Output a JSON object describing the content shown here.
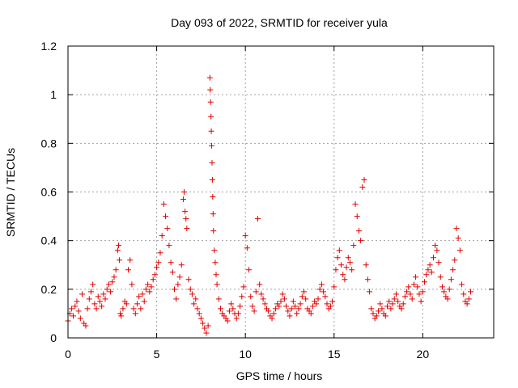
{
  "chart_data": {
    "type": "scatter",
    "title": "Day 093 of 2022, SRMTID for receiver yula",
    "xlabel": "GPS time / hours",
    "ylabel": "SRMTID / TECUs",
    "xlim": [
      0,
      24
    ],
    "ylim": [
      0,
      1.2
    ],
    "xticks": [
      0,
      5,
      10,
      15,
      20
    ],
    "yticks": [
      0,
      0.2,
      0.4,
      0.6,
      0.8,
      1,
      1.2
    ],
    "ytick_labels": [
      "0",
      "0.2",
      "0.4",
      "0.6",
      "0.8",
      "1",
      "1.2"
    ],
    "grid": true,
    "marker": "+",
    "color": "#e00000",
    "series": [
      {
        "name": "SRMTID",
        "x": [
          0.0,
          0.1,
          0.2,
          0.3,
          0.4,
          0.5,
          0.6,
          0.7,
          0.8,
          0.9,
          1.0,
          1.1,
          1.2,
          1.3,
          1.4,
          1.5,
          1.6,
          1.7,
          1.8,
          1.9,
          2.0,
          2.1,
          2.2,
          2.3,
          2.4,
          2.5,
          2.6,
          2.7,
          2.8,
          2.85,
          2.9,
          2.95,
          3.0,
          3.1,
          3.2,
          3.3,
          3.4,
          3.5,
          3.6,
          3.7,
          3.8,
          3.9,
          4.0,
          4.1,
          4.2,
          4.3,
          4.4,
          4.5,
          4.6,
          4.7,
          4.8,
          4.9,
          5.0,
          5.1,
          5.2,
          5.3,
          5.4,
          5.5,
          5.6,
          5.7,
          5.8,
          5.9,
          6.0,
          6.1,
          6.2,
          6.3,
          6.4,
          6.5,
          6.55,
          6.6,
          6.65,
          6.7,
          6.8,
          6.9,
          7.0,
          7.1,
          7.2,
          7.3,
          7.4,
          7.5,
          7.6,
          7.7,
          7.8,
          7.9,
          8.0,
          8.02,
          8.04,
          8.06,
          8.08,
          8.1,
          8.12,
          8.14,
          8.16,
          8.18,
          8.2,
          8.25,
          8.3,
          8.35,
          8.4,
          8.5,
          8.6,
          8.7,
          8.8,
          8.9,
          9.0,
          9.1,
          9.2,
          9.3,
          9.4,
          9.5,
          9.6,
          9.7,
          9.8,
          9.9,
          10.0,
          10.1,
          10.2,
          10.3,
          10.4,
          10.5,
          10.6,
          10.7,
          10.8,
          10.9,
          11.0,
          11.1,
          11.2,
          11.3,
          11.4,
          11.5,
          11.6,
          11.7,
          11.8,
          11.9,
          12.0,
          12.1,
          12.2,
          12.3,
          12.4,
          12.5,
          12.6,
          12.7,
          12.8,
          12.9,
          13.0,
          13.1,
          13.2,
          13.3,
          13.4,
          13.5,
          13.6,
          13.7,
          13.8,
          13.9,
          14.0,
          14.1,
          14.2,
          14.3,
          14.4,
          14.5,
          14.6,
          14.7,
          14.8,
          14.9,
          15.0,
          15.1,
          15.2,
          15.3,
          15.4,
          15.5,
          15.6,
          15.7,
          15.8,
          15.9,
          16.0,
          16.1,
          16.2,
          16.3,
          16.4,
          16.5,
          16.6,
          16.7,
          16.8,
          16.9,
          17.0,
          17.1,
          17.2,
          17.3,
          17.4,
          17.5,
          17.6,
          17.7,
          17.8,
          17.9,
          18.0,
          18.1,
          18.2,
          18.3,
          18.4,
          18.5,
          18.6,
          18.7,
          18.8,
          18.9,
          19.0,
          19.1,
          19.2,
          19.3,
          19.4,
          19.5,
          19.6,
          19.7,
          19.8,
          19.9,
          20.0,
          20.1,
          20.2,
          20.3,
          20.4,
          20.5,
          20.6,
          20.7,
          20.8,
          20.9,
          21.0,
          21.1,
          21.2,
          21.3,
          21.4,
          21.5,
          21.6,
          21.7,
          21.8,
          21.9,
          22.0,
          22.1,
          22.2,
          22.3,
          22.4,
          22.5,
          22.6,
          22.7
        ],
        "y": [
          0.07,
          0.1,
          0.12,
          0.09,
          0.13,
          0.15,
          0.11,
          0.08,
          0.18,
          0.06,
          0.05,
          0.12,
          0.16,
          0.19,
          0.22,
          0.14,
          0.12,
          0.17,
          0.15,
          0.13,
          0.18,
          0.16,
          0.2,
          0.22,
          0.19,
          0.23,
          0.25,
          0.28,
          0.36,
          0.38,
          0.32,
          0.1,
          0.09,
          0.12,
          0.15,
          0.14,
          0.28,
          0.32,
          0.22,
          0.12,
          0.1,
          0.14,
          0.17,
          0.12,
          0.18,
          0.15,
          0.2,
          0.22,
          0.19,
          0.21,
          0.24,
          0.26,
          0.29,
          0.31,
          0.35,
          0.42,
          0.55,
          0.5,
          0.45,
          0.38,
          0.31,
          0.27,
          0.2,
          0.16,
          0.22,
          0.25,
          0.3,
          0.57,
          0.6,
          0.52,
          0.49,
          0.45,
          0.24,
          0.2,
          0.18,
          0.14,
          0.16,
          0.12,
          0.1,
          0.08,
          0.06,
          0.04,
          0.02,
          0.05,
          1.07,
          1.02,
          0.97,
          0.91,
          0.85,
          0.79,
          0.72,
          0.65,
          0.58,
          0.51,
          0.44,
          0.36,
          0.31,
          0.26,
          0.22,
          0.16,
          0.12,
          0.1,
          0.09,
          0.08,
          0.07,
          0.11,
          0.14,
          0.12,
          0.1,
          0.08,
          0.1,
          0.13,
          0.17,
          0.21,
          0.42,
          0.37,
          0.28,
          0.17,
          0.13,
          0.11,
          0.19,
          0.49,
          0.22,
          0.18,
          0.16,
          0.14,
          0.12,
          0.11,
          0.09,
          0.08,
          0.1,
          0.12,
          0.14,
          0.13,
          0.15,
          0.18,
          0.16,
          0.13,
          0.11,
          0.09,
          0.12,
          0.15,
          0.13,
          0.1,
          0.12,
          0.14,
          0.17,
          0.19,
          0.16,
          0.12,
          0.11,
          0.1,
          0.13,
          0.15,
          0.14,
          0.16,
          0.2,
          0.22,
          0.19,
          0.17,
          0.14,
          0.12,
          0.13,
          0.15,
          0.21,
          0.28,
          0.33,
          0.36,
          0.3,
          0.26,
          0.24,
          0.29,
          0.33,
          0.31,
          0.28,
          0.38,
          0.55,
          0.5,
          0.44,
          0.4,
          0.62,
          0.65,
          0.3,
          0.24,
          0.19,
          0.12,
          0.1,
          0.08,
          0.09,
          0.11,
          0.14,
          0.12,
          0.1,
          0.09,
          0.13,
          0.15,
          0.12,
          0.14,
          0.16,
          0.18,
          0.15,
          0.13,
          0.12,
          0.14,
          0.17,
          0.19,
          0.21,
          0.18,
          0.16,
          0.22,
          0.25,
          0.21,
          0.18,
          0.15,
          0.19,
          0.23,
          0.26,
          0.28,
          0.3,
          0.27,
          0.33,
          0.38,
          0.36,
          0.31,
          0.25,
          0.21,
          0.19,
          0.17,
          0.16,
          0.2,
          0.24,
          0.28,
          0.32,
          0.45,
          0.41,
          0.36,
          0.22,
          0.18,
          0.15,
          0.14,
          0.16,
          0.19
        ]
      }
    ]
  }
}
